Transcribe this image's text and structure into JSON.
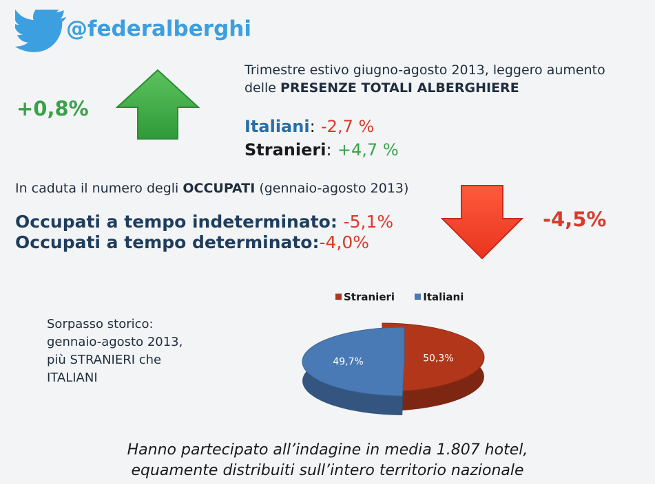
{
  "header": {
    "handle": "@federalberghi",
    "logo_icon": "twitter-bird-icon",
    "logo_color": "#3b9fe0"
  },
  "presenze": {
    "intro_line1": "Trimestre estivo giugno-agosto 2013, leggero aumento",
    "intro_line2_prefix": "delle ",
    "intro_line2_bold": "PRESENZE TOTALI ALBERGHIERE",
    "total_change": "+0,8%",
    "arrow_icon": "arrow-up-icon",
    "italiani_label": "Italiani",
    "italiani_value": "-2,7 %",
    "stranieri_label": "Stranieri",
    "stranieri_value": "+4,7 %",
    "colon": ":"
  },
  "occupati": {
    "intro_prefix": "In caduta il numero degli ",
    "intro_bold": "OCCUPATI",
    "intro_suffix": " (gennaio-agosto 2013)",
    "indeterminato_label": "Occupati a tempo indeterminato:",
    "indeterminato_value": "-5,1%",
    "determinato_label": "Occupati a tempo determinato:",
    "determinato_value": "-4,0%",
    "total_change": "-4,5%",
    "arrow_icon": "arrow-down-icon"
  },
  "sorpasso": {
    "line1": "Sorpasso storico:",
    "line2": "gennaio-agosto 2013,",
    "line3": "più STRANIERI che",
    "line4": "ITALIANI"
  },
  "chart_data": {
    "type": "pie",
    "title": "",
    "legend_position": "top",
    "slices": [
      {
        "name": "Stranieri",
        "value": 50.3,
        "label": "50,3%",
        "color": "#b2371a"
      },
      {
        "name": "Italiani",
        "value": 49.7,
        "label": "49,7%",
        "color": "#4a7ab5"
      }
    ]
  },
  "footer": {
    "line1": "Hanno partecipato all’indagine in media 1.807 hotel,",
    "line2": "equamente distribuiti sull’intero territorio nazionale"
  },
  "colors": {
    "green": "#3aa14a",
    "red": "#d93a2b",
    "blue_label": "#2a6ea6",
    "navy_text": "#1f3d5c"
  }
}
